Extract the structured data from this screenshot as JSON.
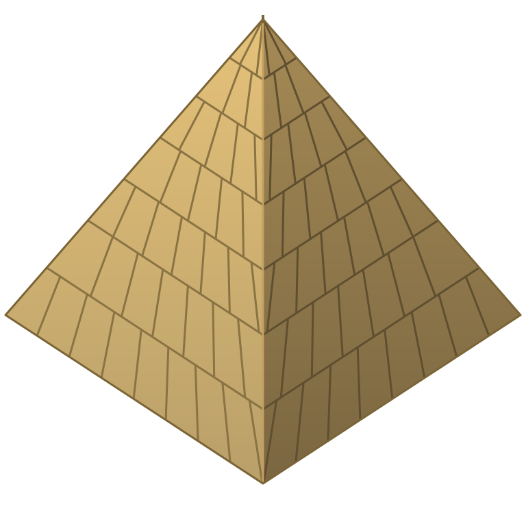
{
  "sprite": {
    "name": "pyramid",
    "view": "isometric",
    "material": "sandstone-blocks",
    "visible_text": []
  },
  "faces": {
    "left": {
      "name": "left-face",
      "tiers": 7
    },
    "right": {
      "name": "right-face",
      "tiers": 7
    }
  },
  "colors": {
    "background": "#ffffff",
    "left_top": "#e5c27a",
    "left_bottom": "#b99f69",
    "right_top": "#a58a55",
    "right_bottom": "#7a6641",
    "outline": "#7b6537",
    "mortar_left": "#8a7343",
    "mortar_right": "#5f4f30",
    "apex_stroke": "#c4a061"
  }
}
